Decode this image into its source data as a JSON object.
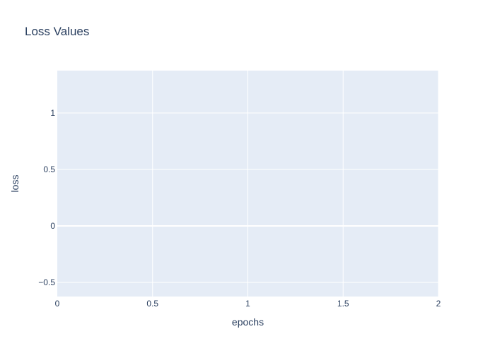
{
  "chart_data": {
    "type": "line",
    "title": "Loss Values",
    "xlabel": "epochs",
    "ylabel": "loss",
    "xlim": [
      0,
      2
    ],
    "ylim": [
      -0.625,
      1.375
    ],
    "x_ticks": [
      0,
      0.5,
      1,
      1.5,
      2
    ],
    "x_tick_labels": [
      "0",
      "0.5",
      "1",
      "1.5",
      "2"
    ],
    "y_ticks": [
      -0.5,
      0,
      0.5,
      1
    ],
    "y_tick_labels": [
      "−0.5",
      "0",
      "0.5",
      "1"
    ],
    "series": [],
    "grid": true,
    "colors": {
      "plot_background": "#e5ecf6",
      "grid": "#ffffff",
      "text": "#2a3f5f",
      "zero_line": "#ffffff"
    }
  }
}
